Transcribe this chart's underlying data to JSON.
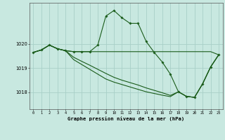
{
  "title": "Graphe pression niveau de la mer (hPa)",
  "background_color": "#c8e8e0",
  "grid_color": "#a8d0c8",
  "line_color": "#1a5c1a",
  "xlim": [
    -0.5,
    23.5
  ],
  "ylim": [
    1017.3,
    1021.7
  ],
  "yticks": [
    1018,
    1019,
    1020
  ],
  "xticks": [
    0,
    1,
    2,
    3,
    4,
    5,
    6,
    7,
    8,
    9,
    10,
    11,
    12,
    13,
    14,
    15,
    16,
    17,
    18,
    19,
    20,
    21,
    22,
    23
  ],
  "series1": [
    1019.65,
    1019.75,
    1019.95,
    1019.8,
    1019.72,
    1019.68,
    1019.68,
    1019.68,
    1019.95,
    1021.15,
    1021.38,
    1021.08,
    1020.85,
    1020.85,
    1020.1,
    1019.65,
    1019.25,
    1018.75,
    1018.02,
    1017.83,
    1017.79,
    1018.35,
    1019.05,
    1019.55
  ],
  "series2": [
    1019.65,
    1019.75,
    1019.95,
    1019.8,
    1019.72,
    1019.68,
    1019.68,
    1019.68,
    1019.68,
    1019.68,
    1019.68,
    1019.68,
    1019.68,
    1019.68,
    1019.68,
    1019.68,
    1019.68,
    1019.68,
    1019.68,
    1019.68,
    1019.68,
    1019.68,
    1019.68,
    1019.55
  ],
  "series3": [
    1019.65,
    1019.75,
    1019.95,
    1019.8,
    1019.72,
    1019.35,
    1019.15,
    1018.95,
    1018.75,
    1018.55,
    1018.42,
    1018.32,
    1018.22,
    1018.12,
    1018.02,
    1017.95,
    1017.88,
    1017.82,
    1018.02,
    1017.83,
    1017.79,
    1018.35,
    1019.05,
    1019.55
  ],
  "series4": [
    1019.65,
    1019.75,
    1019.95,
    1019.8,
    1019.72,
    1019.45,
    1019.28,
    1019.12,
    1018.95,
    1018.78,
    1018.62,
    1018.5,
    1018.4,
    1018.3,
    1018.18,
    1018.08,
    1017.98,
    1017.87,
    1018.02,
    1017.83,
    1017.79,
    1018.35,
    1019.05,
    1019.55
  ]
}
